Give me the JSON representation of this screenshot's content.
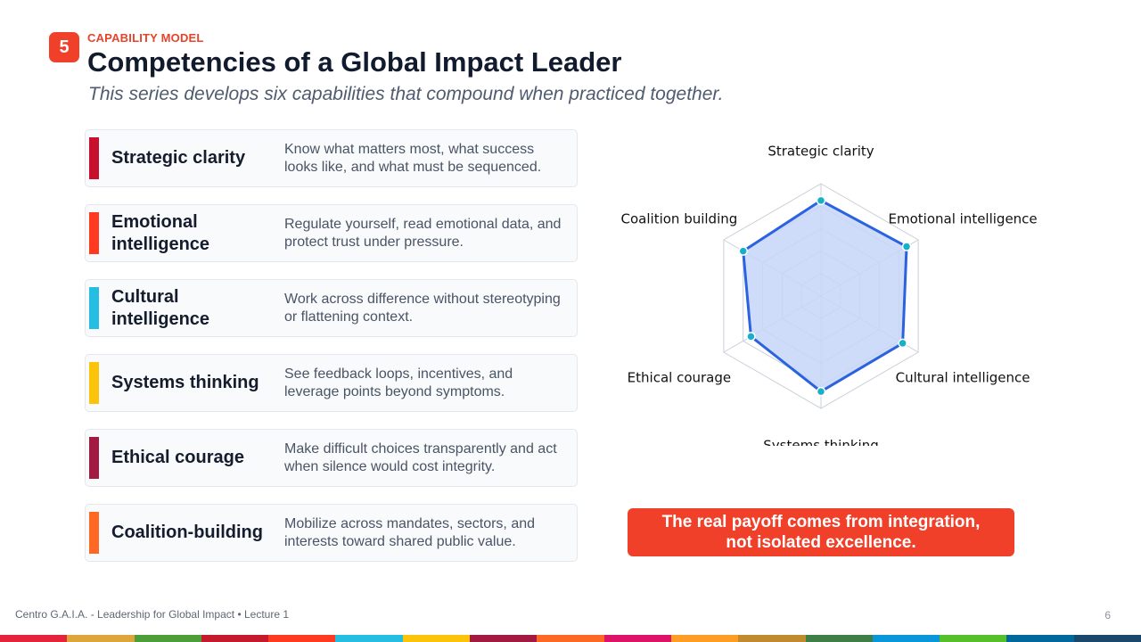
{
  "header": {
    "slide_number": "5",
    "eyebrow": "CAPABILITY MODEL",
    "title": "Competencies of a Global Impact Leader",
    "subtitle": "This series develops six capabilities that compound when practiced together."
  },
  "competencies": [
    {
      "name": "Strategic clarity",
      "description": "Know what matters most, what success looks like, and what must be sequenced.",
      "color": "#c8102e"
    },
    {
      "name": "Emotional intelligence",
      "description": "Regulate yourself, read emotional data, and protect trust under pressure.",
      "color": "#ff3a21"
    },
    {
      "name": "Cultural intelligence",
      "description": "Work across difference without stereotyping or flattening context.",
      "color": "#26bde2"
    },
    {
      "name": "Systems thinking",
      "description": "See feedback loops, incentives, and leverage points beyond symptoms.",
      "color": "#fcc30b"
    },
    {
      "name": "Ethical courage",
      "description": "Make difficult choices transparently and act when silence would cost integrity.",
      "color": "#a21942"
    },
    {
      "name": "Coalition-building",
      "description": "Mobilize across mandates, sectors, and interests toward shared public value.",
      "color": "#fd6925"
    }
  ],
  "chart_data": {
    "type": "radar",
    "axes": [
      "Strategic clarity",
      "Emotional intelligence",
      "Cultural intelligence",
      "Systems thinking",
      "Ethical courage",
      "Coalition building"
    ],
    "values": [
      0.85,
      0.88,
      0.84,
      0.85,
      0.72,
      0.8
    ],
    "range": [
      0,
      1
    ],
    "grid_levels": 5,
    "line_color": "#2a62e0",
    "fill_color": "#c7d6f8",
    "point_color": "#17b0c9"
  },
  "callout": {
    "line1": "The real payoff comes from integration,",
    "line2": "not isolated excellence."
  },
  "footer": {
    "left": "Centro G.A.I.A. - Leadership for Global Impact • Lecture 1",
    "page": "6"
  },
  "strip_colors": [
    "#e5243b",
    "#dda63a",
    "#4c9f38",
    "#c5192d",
    "#ff3a21",
    "#26bde2",
    "#fcc30b",
    "#a21942",
    "#fd6925",
    "#dd1367",
    "#fd9d24",
    "#bf8b2e",
    "#3f7e44",
    "#0a97d9",
    "#56c02b",
    "#00689d",
    "#19486a"
  ]
}
